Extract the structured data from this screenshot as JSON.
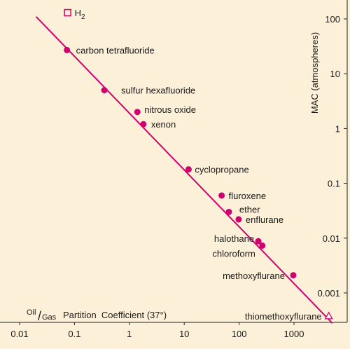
{
  "chart_data": {
    "type": "scatter",
    "title": "",
    "xlabel": "Partition  Coefficient (37°)",
    "xlabel_prefix_top": "Oil",
    "xlabel_prefix_bottom": "Gas",
    "xlabel_slash": "/",
    "ylabel": "MAC (atmospheres)",
    "x_scale": "log",
    "y_scale": "log",
    "xlim": [
      0.01,
      5000
    ],
    "ylim": [
      0.0002,
      120
    ],
    "x_ticks": [
      {
        "value": 0.01,
        "label": "0.01"
      },
      {
        "value": 0.1,
        "label": "0.1"
      },
      {
        "value": 1,
        "label": "1"
      },
      {
        "value": 10,
        "label": "10"
      },
      {
        "value": 100,
        "label": "100"
      },
      {
        "value": 1000,
        "label": "1000"
      }
    ],
    "y_ticks": [
      {
        "value": 100,
        "label": "100"
      },
      {
        "value": 10,
        "label": "10"
      },
      {
        "value": 1,
        "label": "1"
      },
      {
        "value": 0.1,
        "label": "0.1"
      },
      {
        "value": 0.01,
        "label": "0.01"
      },
      {
        "value": 0.001,
        "label": "0.001"
      }
    ],
    "grid": false,
    "colors": {
      "series": "#d1006f",
      "background": "#fdf0d9",
      "text": "#1a1a1a"
    },
    "trend_line": {
      "x": [
        0.02,
        5000
      ],
      "y": [
        110,
        0.00028
      ]
    },
    "points": [
      {
        "label": "H",
        "label_sub": "2",
        "x": 0.075,
        "y": 130,
        "marker": "open-square"
      },
      {
        "label": "carbon tetrafluoride",
        "x": 0.073,
        "y": 27,
        "marker": "dot"
      },
      {
        "label": "sulfur hexafluoride",
        "x": 0.35,
        "y": 5,
        "marker": "dot"
      },
      {
        "label": "nitrous oxide",
        "x": 1.4,
        "y": 2.0,
        "marker": "dot"
      },
      {
        "label": "xenon",
        "x": 1.8,
        "y": 1.2,
        "marker": "dot"
      },
      {
        "label": "cyclopropane",
        "x": 12,
        "y": 0.18,
        "marker": "dot"
      },
      {
        "label": "fluroxene",
        "x": 48,
        "y": 0.06,
        "marker": "dot"
      },
      {
        "label": "ether",
        "x": 65,
        "y": 0.03,
        "marker": "dot"
      },
      {
        "label": "enflurane",
        "x": 98,
        "y": 0.022,
        "marker": "dot"
      },
      {
        "label": "halothane",
        "x": 224,
        "y": 0.0088,
        "marker": "dot"
      },
      {
        "label": "chloroform",
        "x": 265,
        "y": 0.0073,
        "marker": "dot"
      },
      {
        "label": "methoxyflurane",
        "x": 970,
        "y": 0.0021,
        "marker": "dot"
      },
      {
        "label": "thiomethoxyflurane",
        "x": 4300,
        "y": 0.00038,
        "marker": "open-triangle"
      }
    ]
  }
}
